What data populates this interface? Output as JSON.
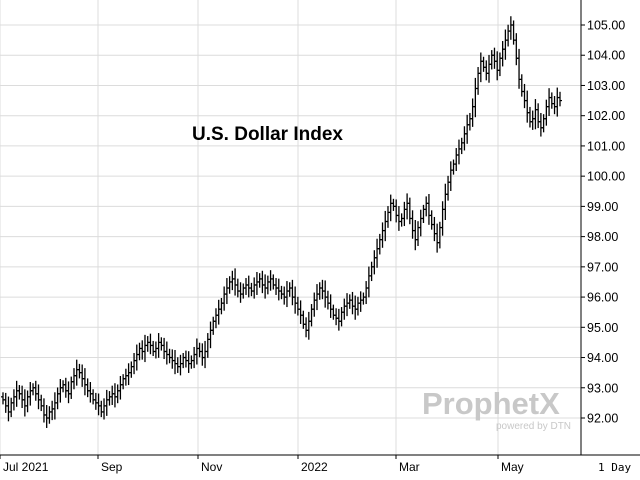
{
  "chart_data": {
    "type": "ohlc_bar",
    "title": "U.S. Dollar Index",
    "period_label": "1 Day",
    "y_axis": {
      "min": 91.4,
      "max": 105.4,
      "side": "right",
      "ticks": [
        "92.00",
        "93.00",
        "94.00",
        "95.00",
        "96.00",
        "97.00",
        "98.00",
        "99.00",
        "100.00",
        "101.00",
        "102.00",
        "103.00",
        "104.00",
        "105.00"
      ]
    },
    "x_axis": {
      "labels": [
        "Jul 2021",
        "Sep",
        "Nov",
        "2022",
        "Mar",
        "May"
      ]
    },
    "grid": true,
    "watermark": {
      "brand": "ProphetX",
      "tagline": "powered by DTN"
    },
    "series": [
      {
        "approx_daily_closes": [
          92.6,
          92.4,
          92.2,
          92.5,
          92.7,
          92.9,
          92.8,
          92.6,
          92.4,
          92.7,
          92.9,
          93.0,
          92.8,
          92.6,
          92.4,
          92.1,
          92.0,
          92.2,
          92.3,
          92.5,
          92.8,
          93.0,
          93.1,
          92.9,
          92.8,
          93.2,
          93.4,
          93.6,
          93.5,
          93.3,
          93.1,
          92.9,
          92.8,
          92.6,
          92.5,
          92.4,
          92.2,
          92.4,
          92.6,
          92.7,
          92.8,
          92.7,
          92.9,
          93.1,
          93.3,
          93.4,
          93.5,
          93.7,
          93.9,
          94.1,
          94.3,
          94.2,
          94.4,
          94.5,
          94.4,
          94.2,
          94.3,
          94.5,
          94.4,
          94.2,
          94.1,
          94.0,
          93.9,
          93.8,
          93.7,
          93.8,
          94.0,
          93.9,
          93.8,
          93.9,
          94.1,
          94.3,
          94.2,
          94.0,
          94.2,
          94.6,
          94.9,
          95.2,
          95.4,
          95.6,
          95.8,
          96.1,
          96.3,
          96.5,
          96.6,
          96.4,
          96.2,
          96.1,
          96.3,
          96.4,
          96.3,
          96.2,
          96.4,
          96.5,
          96.6,
          96.4,
          96.3,
          96.5,
          96.6,
          96.4,
          96.3,
          96.2,
          96.1,
          96.0,
          96.2,
          96.3,
          96.0,
          95.8,
          95.6,
          95.4,
          95.1,
          94.9,
          95.2,
          95.6,
          95.9,
          96.1,
          96.3,
          96.2,
          96.0,
          95.8,
          95.6,
          95.4,
          95.3,
          95.2,
          95.5,
          95.7,
          95.8,
          95.9,
          95.7,
          95.6,
          95.8,
          95.9,
          96.0,
          96.3,
          96.7,
          97.0,
          97.3,
          97.6,
          97.9,
          98.2,
          98.5,
          98.8,
          99.1,
          99.0,
          98.7,
          98.5,
          98.6,
          98.9,
          99.1,
          98.6,
          98.2,
          97.9,
          98.3,
          98.6,
          98.9,
          99.1,
          98.7,
          98.4,
          98.1,
          97.8,
          98.3,
          98.9,
          99.4,
          99.8,
          100.2,
          100.4,
          100.7,
          100.9,
          101.1,
          101.4,
          101.7,
          101.9,
          102.3,
          102.9,
          103.4,
          103.8,
          103.6,
          103.4,
          103.7,
          104.0,
          103.8,
          103.5,
          103.9,
          104.2,
          104.5,
          104.8,
          105.0,
          104.5,
          103.9,
          103.2,
          102.8,
          102.5,
          102.1,
          101.8,
          101.9,
          102.2,
          101.8,
          101.6,
          101.9,
          102.3,
          102.6,
          102.4,
          102.3,
          102.6,
          102.5
        ]
      }
    ]
  }
}
